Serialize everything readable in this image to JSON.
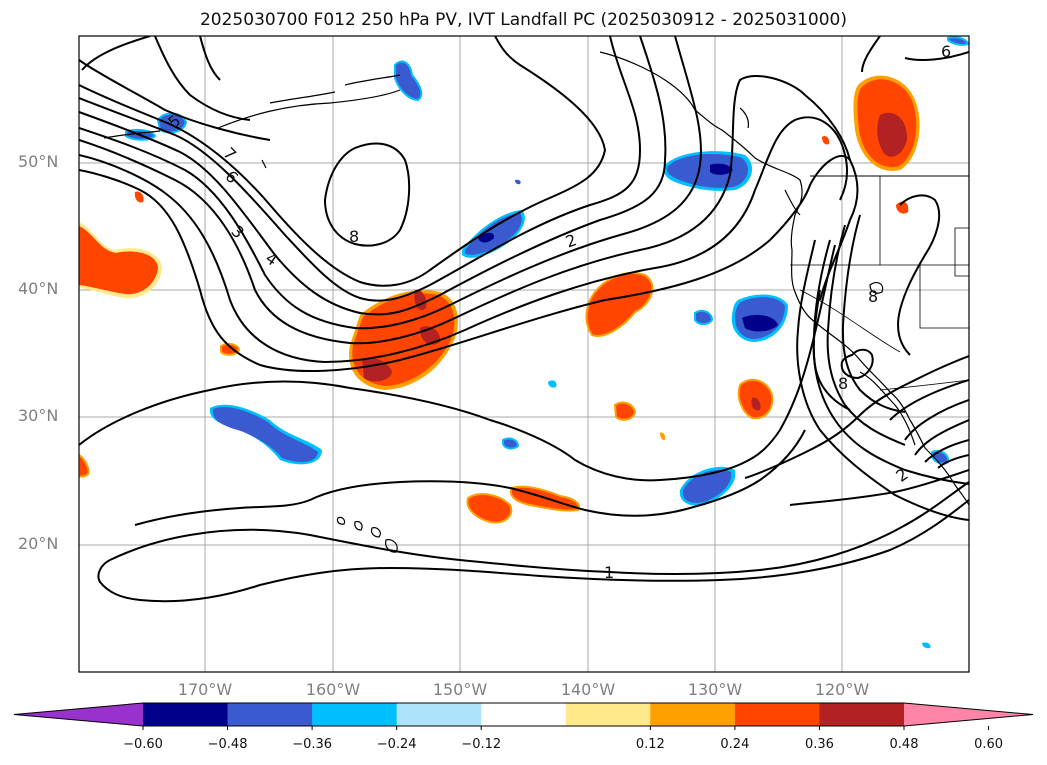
{
  "title": "2025030700 F012 250 hPa PV, IVT Landfall PC (2025030912 - 2025031000)",
  "latitude_labels": [
    "50°N",
    "40°N",
    "30°N",
    "20°N"
  ],
  "longitude_labels": [
    "170°W",
    "160°W",
    "150°W",
    "140°W",
    "130°W",
    "120°W"
  ],
  "contour_labels": [
    "5",
    "7",
    "6",
    "3",
    "4",
    "8",
    "2",
    "1"
  ],
  "colorbar": {
    "tick_labels": [
      "−0.60",
      "−0.48",
      "−0.36",
      "−0.24",
      "−0.12",
      "0.12",
      "0.24",
      "0.36",
      "0.48",
      "0.60"
    ],
    "colors": [
      "#9932cc",
      "#00008b",
      "#3a5bd0",
      "#00bfff",
      "#aee4fb",
      "#ffffff",
      "#ffe98a",
      "#ffa000",
      "#ff4500",
      "#b22222",
      "#ff85a8"
    ]
  },
  "field_colors": {
    "contour": "#000000",
    "coast": "#000000",
    "grid": "#a9a9a9"
  }
}
